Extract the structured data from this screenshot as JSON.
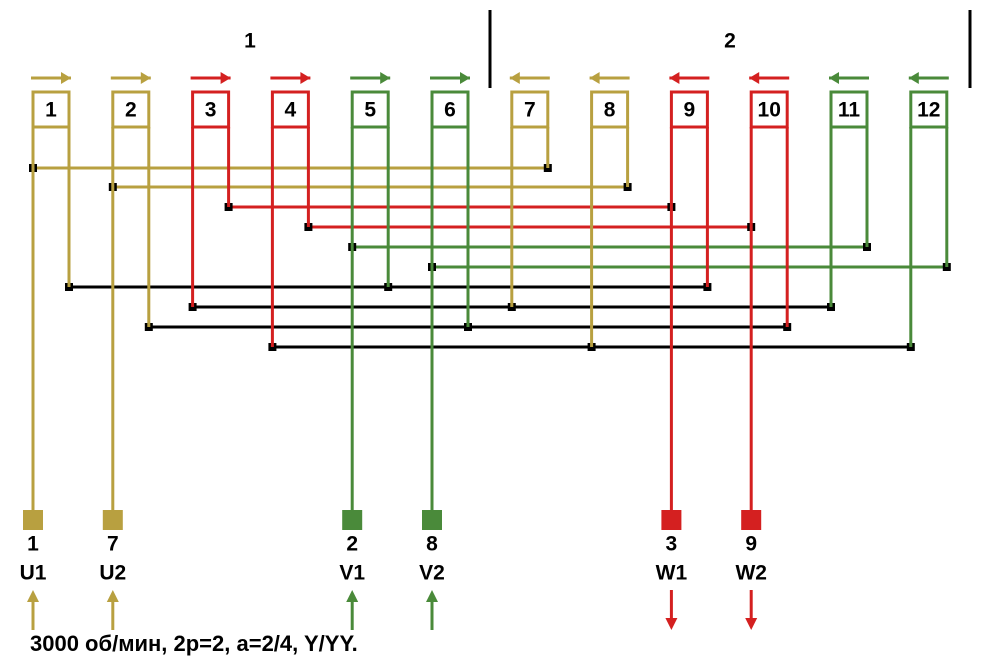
{
  "groups": [
    "1",
    "2"
  ],
  "slots": [
    "1",
    "2",
    "3",
    "4",
    "5",
    "6",
    "7",
    "8",
    "9",
    "10",
    "11",
    "12"
  ],
  "terminals": [
    {
      "number": "1",
      "label": "U1"
    },
    {
      "number": "7",
      "label": "U2"
    },
    {
      "number": "2",
      "label": "V1"
    },
    {
      "number": "8",
      "label": "V2"
    },
    {
      "number": "3",
      "label": "W1"
    },
    {
      "number": "9",
      "label": "W2"
    }
  ],
  "caption": "3000 об/мин, 2p=2, a=2/4, Y/YY."
}
